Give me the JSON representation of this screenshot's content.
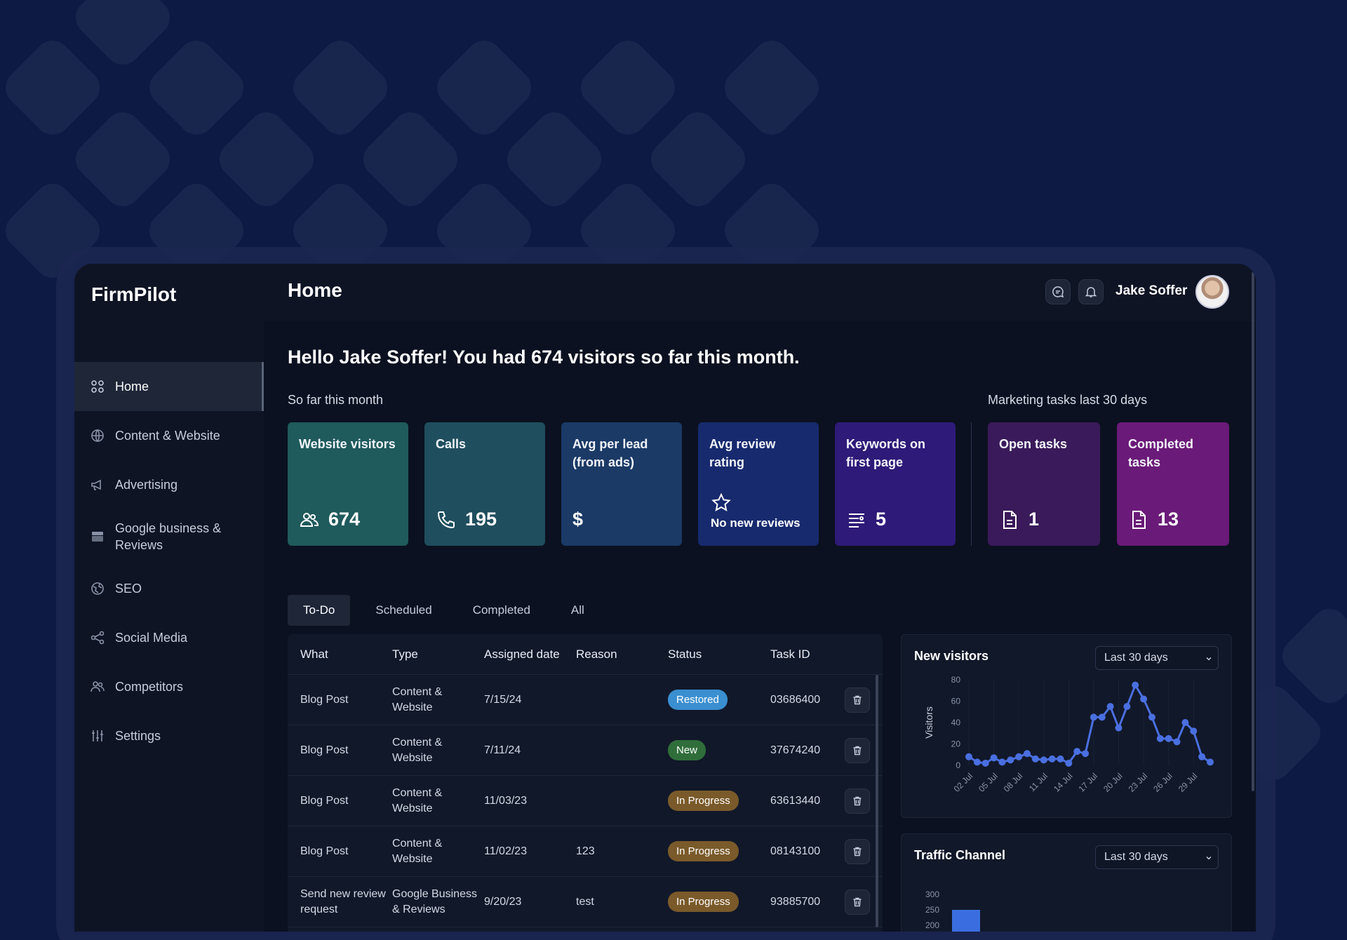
{
  "app": {
    "name": "FirmPilot"
  },
  "sidebar": {
    "items": [
      {
        "label": "Home",
        "icon": "grid-icon",
        "active": true
      },
      {
        "label": "Content & Website",
        "icon": "globe-icon"
      },
      {
        "label": "Advertising",
        "icon": "megaphone-icon"
      },
      {
        "label": "Google business & Reviews",
        "icon": "store-icon"
      },
      {
        "label": "SEO",
        "icon": "seo-globe-icon"
      },
      {
        "label": "Social Media",
        "icon": "share-icon"
      },
      {
        "label": "Competitors",
        "icon": "users-icon"
      },
      {
        "label": "Settings",
        "icon": "sliders-icon"
      }
    ]
  },
  "header": {
    "title": "Home",
    "user_name": "Jake Soffer"
  },
  "greeting": "Hello Jake Soffer! You had 674 visitors so far this month.",
  "sections": {
    "month_label": "So far this month",
    "tasks_label": "Marketing tasks last 30 days"
  },
  "stats": [
    {
      "title": "Website visitors",
      "value": "674",
      "icon": "users-icon",
      "color": "#1f5a5c"
    },
    {
      "title": "Calls",
      "value": "195",
      "icon": "phone-icon",
      "color": "#1f4e5e"
    },
    {
      "title": "Avg per lead (from ads)",
      "value": "$",
      "icon": "",
      "color": "#1b3a66"
    },
    {
      "title": "Avg review rating",
      "value": "No new reviews",
      "icon": "star-icon",
      "color": "#172a6e"
    },
    {
      "title": "Keywords on first page",
      "value": "5",
      "icon": "list-icon",
      "color": "#2e1a78"
    },
    {
      "title": "Open tasks",
      "value": "1",
      "icon": "document-icon",
      "color": "#3a1a5a"
    },
    {
      "title": "Completed tasks",
      "value": "13",
      "icon": "document-icon",
      "color": "#6a1a78"
    }
  ],
  "tabs": [
    {
      "label": "To-Do",
      "active": true
    },
    {
      "label": "Scheduled"
    },
    {
      "label": "Completed"
    },
    {
      "label": "All"
    }
  ],
  "table": {
    "headers": [
      "What",
      "Type",
      "Assigned date",
      "Reason",
      "Status",
      "Task ID"
    ],
    "rows": [
      {
        "what": "Blog Post",
        "type": "Content & Website",
        "date": "7/15/24",
        "reason": "",
        "status": "Restored",
        "status_color": "#3a8fd0",
        "id": "03686400"
      },
      {
        "what": "Blog Post",
        "type": "Content & Website",
        "date": "7/11/24",
        "reason": "",
        "status": "New",
        "status_color": "#2f6e3a",
        "id": "37674240"
      },
      {
        "what": "Blog Post",
        "type": "Content & Website",
        "date": "11/03/23",
        "reason": "",
        "status": "In Progress",
        "status_color": "#7a5a2a",
        "id": "63613440"
      },
      {
        "what": "Blog Post",
        "type": "Content & Website",
        "date": "11/02/23",
        "reason": "123",
        "status": "In Progress",
        "status_color": "#7a5a2a",
        "id": "08143100"
      },
      {
        "what": "Send new review request",
        "type": "Google Business & Reviews",
        "date": "9/20/23",
        "reason": "test",
        "status": "In Progress",
        "status_color": "#7a5a2a",
        "id": "93885700"
      }
    ]
  },
  "visitors_panel": {
    "title": "New visitors",
    "range": "Last 30 days"
  },
  "traffic_panel": {
    "title": "Traffic Channel",
    "range": "Last 30 days"
  },
  "chart_data": [
    {
      "type": "line",
      "title": "New visitors",
      "ylabel": "Visitors",
      "xlabel": "",
      "ylim": [
        0,
        80
      ],
      "yticks": [
        0,
        20,
        40,
        60,
        80
      ],
      "xticks": [
        "02 Jul",
        "05 Jul",
        "08 Jul",
        "11 Jul",
        "14 Jul",
        "17 Jul",
        "20 Jul",
        "23 Jul",
        "26 Jul",
        "29 Jul"
      ],
      "color": "#4a6fe0",
      "values": [
        8,
        3,
        2,
        7,
        3,
        5,
        8,
        11,
        6,
        5,
        6,
        6,
        2,
        13,
        11,
        45,
        45,
        55,
        35,
        55,
        75,
        62,
        45,
        25,
        25,
        22,
        40,
        32,
        8,
        3
      ]
    },
    {
      "type": "bar",
      "title": "Traffic Channel",
      "yticks": [
        200,
        250,
        300
      ],
      "values": [
        250
      ],
      "color": "#3a6ee0"
    }
  ]
}
